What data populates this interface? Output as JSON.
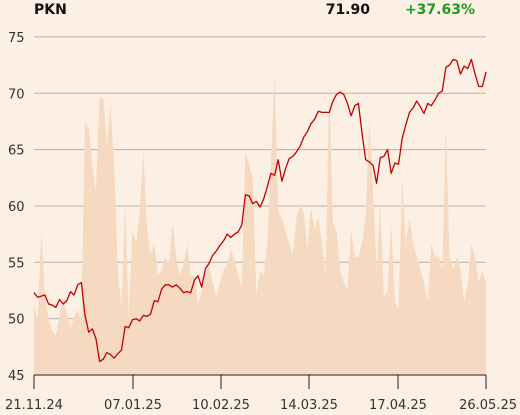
{
  "header": {
    "ticker": "PKN",
    "last": "71.90",
    "change": "+37.63%",
    "change_color": "#1c9c1c"
  },
  "colors": {
    "background": "#fcefe3",
    "price_line": "#c40000",
    "volume_fill": "#f6d9c1",
    "grid": "#b9b1aa"
  },
  "chart_data": {
    "type": "line",
    "y_ticks": [
      "75",
      "70",
      "65",
      "60",
      "55",
      "50",
      "45"
    ],
    "x_ticks": [
      "21.11.24",
      "07.01.25",
      "10.02.25",
      "14.03.25",
      "17.04.25",
      "26.05.25"
    ],
    "ylim": [
      45,
      76.5
    ],
    "grid": true,
    "series": [
      {
        "values": [
          52.3,
          51.9,
          52.0,
          52.1,
          51.3,
          51.2,
          51.0,
          51.7,
          51.3,
          51.6,
          52.4,
          52.1,
          53.0,
          53.2,
          50.3,
          48.8,
          49.1,
          48.2,
          46.2,
          46.4,
          47.0,
          46.8,
          46.5,
          46.9,
          47.2,
          49.3,
          49.2,
          49.9,
          50.0,
          49.8,
          50.3,
          50.2,
          50.4,
          51.6,
          51.5,
          52.6,
          53.0,
          53.0,
          52.8,
          53.0,
          52.7,
          52.3,
          52.4,
          52.3,
          53.4,
          53.8,
          52.8,
          54.4,
          54.9,
          55.6,
          56.0,
          56.5,
          56.9,
          57.5,
          57.2,
          57.5,
          57.7,
          58.3,
          61.0,
          60.9,
          60.2,
          60.4,
          59.9,
          60.6,
          61.7,
          62.9,
          62.7,
          64.1,
          62.2,
          63.3,
          64.2,
          64.4,
          64.8,
          65.3,
          66.1,
          66.6,
          67.3,
          67.7,
          68.4,
          68.3,
          68.3,
          68.3,
          69.3,
          69.9,
          70.1,
          69.9,
          69.1,
          68.0,
          68.9,
          69.1,
          66.4,
          64.1,
          63.9,
          63.6,
          62.0,
          64.3,
          64.4,
          65.0,
          62.9,
          63.8,
          63.7,
          66.0,
          67.2,
          68.3,
          68.7,
          69.3,
          68.8,
          68.2,
          69.1,
          68.9,
          69.4,
          70.0,
          70.2,
          72.3,
          72.5,
          73.0,
          72.9,
          71.7,
          72.4,
          72.2,
          73.0,
          71.7,
          70.6,
          70.6,
          71.9
        ]
      }
    ],
    "volume": [
      28,
      20,
      55,
      30,
      21,
      17,
      15,
      22,
      29,
      23,
      18,
      22,
      25,
      20,
      96,
      94,
      80,
      70,
      106,
      105,
      88,
      103,
      80,
      40,
      26,
      65,
      22,
      55,
      50,
      62,
      85,
      56,
      46,
      50,
      38,
      40,
      45,
      42,
      58,
      45,
      38,
      42,
      50,
      38,
      38,
      27,
      32,
      38,
      42,
      35,
      30,
      35,
      40,
      42,
      48,
      44,
      38,
      33,
      85,
      80,
      75,
      30,
      40,
      38,
      50,
      80,
      115,
      62,
      60,
      55,
      50,
      46,
      60,
      65,
      62,
      48,
      64,
      55,
      60,
      50,
      38,
      110,
      58,
      55,
      40,
      35,
      32,
      55,
      45,
      45,
      50,
      60,
      98,
      70,
      40,
      65,
      30,
      32,
      58,
      28,
      25,
      75,
      50,
      60,
      50,
      45,
      40,
      35,
      28,
      50,
      45,
      45,
      40,
      95,
      45,
      40,
      45,
      40,
      28,
      35,
      50,
      45,
      35,
      40,
      35
    ]
  }
}
